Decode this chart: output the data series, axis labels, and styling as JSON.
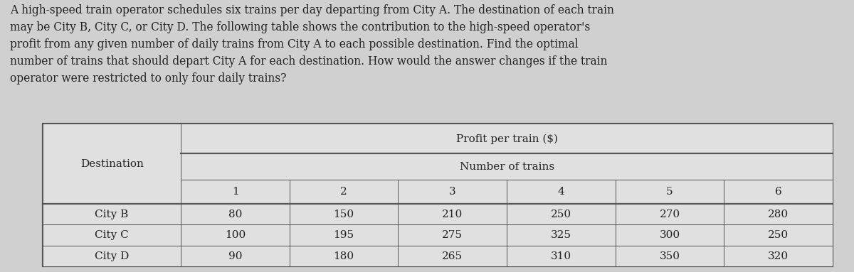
{
  "paragraph": "A high-speed train operator schedules six trains per day departing from City A. The destination of each train\nmay be City B, City C, or City D. The following table shows the contribution to the high-speed operator's\nprofit from any given number of daily trains from City A to each possible destination. Find the optimal\nnumber of trains that should depart City A for each destination. How would the answer changes if the train\noperator were restricted to only four daily trains?",
  "header_top": "Profit per train ($)",
  "header_sub": "Number of trains",
  "col_header": "Destination",
  "num_cols": [
    "1",
    "2",
    "3",
    "4",
    "5",
    "6"
  ],
  "rows": [
    {
      "dest": "City B",
      "values": [
        80,
        150,
        210,
        250,
        270,
        280
      ]
    },
    {
      "dest": "City C",
      "values": [
        100,
        195,
        275,
        325,
        300,
        250
      ]
    },
    {
      "dest": "City D",
      "values": [
        90,
        180,
        265,
        310,
        350,
        320
      ]
    }
  ],
  "bg_color": "#d0d0d0",
  "table_bg": "#e0e0e0",
  "text_color": "#222222",
  "border_color": "#555555",
  "font_size_para": 11.2,
  "font_size_table": 11.0
}
